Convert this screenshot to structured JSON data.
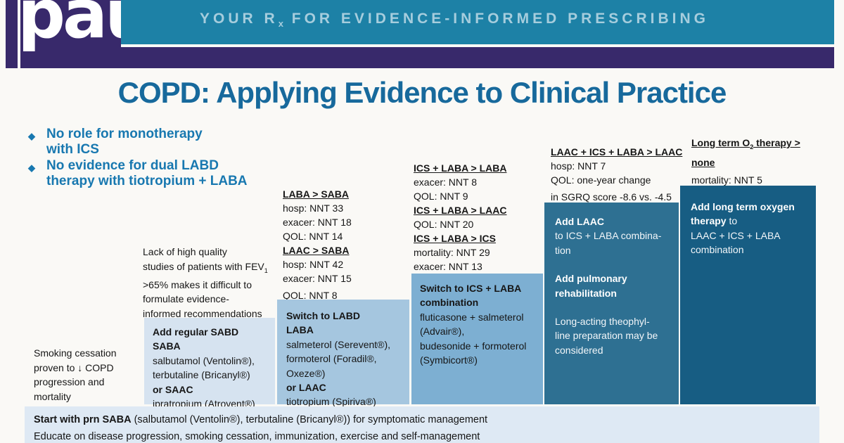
{
  "colors": {
    "purple": "#38296b",
    "teal_banner": "#1d81a6",
    "tagline_text": "#a6cddd",
    "title_text": "#17699c",
    "bullet_text": "#1878b0",
    "step1_bg": "#d6e3f0",
    "step2_bg": "#a5c6df",
    "step3_bg": "#7dafd2",
    "step4_bg": "#2e7092",
    "step5_bg": "#175d83",
    "footer_bg": "#dee9f4"
  },
  "header": {
    "logo_text": "pau",
    "tagline_pre": "YOUR R",
    "tagline_sub": "x",
    "tagline_post": " FOR EVIDENCE-INFORMED PRESCRIBING"
  },
  "title": "COPD: Applying Evidence to Clinical Practice",
  "bullets": {
    "icon": "◆",
    "b1_l1": "No role for monotherapy",
    "b1_l2": "with ICS",
    "b2_l1": "No evidence for dual LABD",
    "b2_l2": "therapy with tiotropium + LABA"
  },
  "notes": {
    "fev": {
      "l1": "Lack of high quality",
      "l2_pre": "studies of patients with FEV",
      "l2_sub": "1",
      "l3": ">65% makes it difficult to",
      "l4": "formulate evidence-",
      "l5": "informed recommendations"
    },
    "smoking": {
      "l1": "Smoking cessation",
      "l2": "proven to ↓ COPD",
      "l3": "progression and",
      "l4": "mortality"
    }
  },
  "stats": {
    "col2": {
      "h1": "LABA > SABA",
      "l1": "hosp: NNT 33",
      "l2": "exacer: NNT 18",
      "l3": "QOL: NNT 14",
      "h2": "LAAC > SABA",
      "l4": "hosp: NNT 42",
      "l5": "exacer: NNT 15",
      "l6": "QOL: NNT 8"
    },
    "col3": {
      "h1": "ICS + LABA > LABA",
      "l1": "exacer: NNT 8",
      "l2": "QOL: NNT 9",
      "h2": "ICS + LABA > LAAC",
      "l3": "QOL: NNT 20",
      "h3": "ICS + LABA > ICS",
      "l4": "mortality: NNT 29",
      "l5": "exacer: NNT 13"
    },
    "col4": {
      "h1": "LAAC + ICS + LABA > LAAC",
      "l1": "hosp: NNT 7",
      "l2": "QOL: one-year change",
      "l3": "in SGRQ score -8.6 vs. -4.5"
    },
    "col5": {
      "h1_pre": "Long term O",
      "h1_sub": "2",
      "h1_post": " therapy >",
      "h2": "none",
      "l1": "mortality: NNT 5"
    }
  },
  "steps": {
    "box1": {
      "t1": "Add regular SABD",
      "t2": "SABA",
      "l1": "salbutamol (Ventolin®),",
      "l2": "terbutaline (Bricanyl®)",
      "t3": "or SAAC",
      "l3": "ipratropium (Atrovent®)"
    },
    "box2": {
      "t1": "Switch to LABD",
      "t2": "LABA",
      "l1": "salmeterol (Serevent®),",
      "l2": "formoterol (Foradil®,",
      "l3": "Oxeze®)",
      "t3": "or LAAC",
      "l4": "tiotropium (Spiriva®)"
    },
    "box3": {
      "t1": "Switch to ICS + LABA",
      "t2": "combination",
      "l1": "fluticasone + salmeterol",
      "l2": "(Advair®),",
      "l3": "budesonide + formoterol",
      "l4": "(Symbicort®)"
    },
    "box4": {
      "t1": "Add LAAC",
      "l1": "to ICS + LABA combina-",
      "l2": "tion",
      "t2": "Add pulmonary",
      "t3": "rehabilitation",
      "l3": "Long-acting theophyl-",
      "l4": "line preparation may be",
      "l5": "considered"
    },
    "box5": {
      "t1": "Add long term oxygen",
      "t2_bold": "therapy",
      "t2_rest": " to",
      "l1": "LAAC + ICS + LABA",
      "l2": "combination"
    }
  },
  "footer": {
    "r1_bold": "Start with prn SABA",
    "r1_rest": " (salbutamol (Ventolin®), terbutaline (Bricanyl®)) for symptomatic management",
    "r2": "Educate on disease progression, smoking cessation, immunization, exercise and self-management"
  }
}
